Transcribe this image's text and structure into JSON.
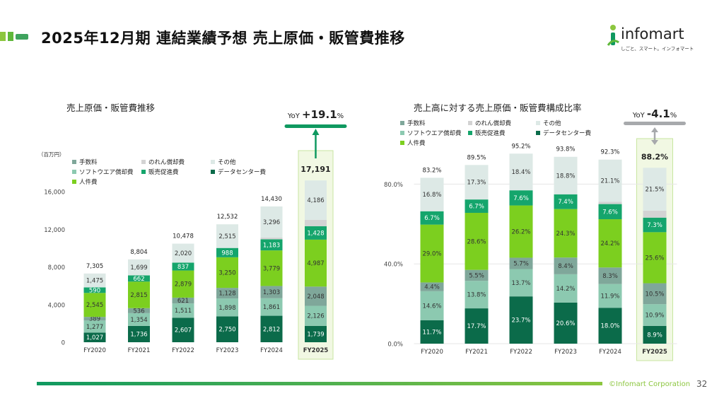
{
  "page_title": "2025年12月期 連結業績予想 売上原価・販管費推移",
  "logo": {
    "name": "infomart",
    "tagline": "しごと、スマート。インフォマート"
  },
  "footer": {
    "copyright": "©Infomart Corporation",
    "page_number": "32"
  },
  "colors": {
    "data_center": "#0b6b4a",
    "software_depr": "#8cc9b0",
    "fees": "#7fa79a",
    "sales_promo": "#15a56c",
    "personnel": "#7ccf1f",
    "goodwill": "#d3d3d3",
    "other": "#dde9e6",
    "highlight_bg": "#f1f8e3",
    "highlight_border": "#c8e6a0",
    "accent_green": "#0f9960",
    "accent_gray": "#a7a9ac"
  },
  "chart_data": [
    {
      "type": "bar",
      "stacked": true,
      "title": "売上原価・販管費推移",
      "unit_label": "（百万円）",
      "categories": [
        "FY2020",
        "FY2021",
        "FY2022",
        "FY2023",
        "FY2024",
        "FY2025"
      ],
      "highlight_category": "FY2025",
      "ylim": [
        0,
        16000
      ],
      "yticks": [
        "0",
        "4,000",
        "8,000",
        "12,000",
        "16,000"
      ],
      "yticks_values": [
        0,
        4000,
        8000,
        12000,
        16000
      ],
      "series": [
        {
          "name": "データセンター費",
          "key": "data_center",
          "values": [
            1027,
            1736,
            2607,
            2750,
            2812,
            1739
          ],
          "labels": [
            "1,027",
            "1,736",
            "2,607",
            "2,750",
            "2,812",
            "1,739"
          ]
        },
        {
          "name": "ソフトウエア償却費",
          "key": "software_depr",
          "values": [
            1277,
            1354,
            1511,
            1898,
            1861,
            2126
          ],
          "labels": [
            "1,277",
            "1,354",
            "1,511",
            "1,898",
            "1,861",
            "2,126"
          ]
        },
        {
          "name": "手数料",
          "key": "fees",
          "values": [
            389,
            536,
            621,
            1128,
            1303,
            2048
          ],
          "labels": [
            "389",
            "536",
            "621",
            "1,128",
            "1,303",
            "2,048"
          ]
        },
        {
          "name": "人件費",
          "key": "personnel",
          "values": [
            2545,
            2815,
            2879,
            3250,
            3779,
            4987
          ],
          "labels": [
            "2,545",
            "2,815",
            "2,879",
            "3,250",
            "3,779",
            "4,987"
          ]
        },
        {
          "name": "販売促進費",
          "key": "sales_promo",
          "values": [
            590,
            662,
            837,
            988,
            1183,
            1428
          ],
          "labels": [
            "590",
            "662",
            "837",
            "988",
            "1,183",
            "1,428"
          ]
        },
        {
          "name": "のれん償却費",
          "key": "goodwill",
          "values": [
            0,
            0,
            0,
            0,
            193,
            674
          ],
          "labels": [
            "",
            "",
            "",
            "",
            "193",
            "674"
          ]
        },
        {
          "name": "その他",
          "key": "other",
          "values": [
            1475,
            1699,
            2020,
            2515,
            3296,
            4186
          ],
          "labels": [
            "1,475",
            "1,699",
            "2,020",
            "2,515",
            "3,296",
            "4,186"
          ]
        }
      ],
      "totals": [
        "7,305",
        "8,804",
        "10,478",
        "12,532",
        "14,430",
        "17,191"
      ],
      "totals_values": [
        7305,
        8804,
        10478,
        12532,
        14430,
        17191
      ],
      "yoy": {
        "prefix": "YoY",
        "value": "+19.1",
        "unit": "%"
      }
    },
    {
      "type": "bar",
      "stacked": true,
      "title": "売上高に対する売上原価・販管費構成比率",
      "categories": [
        "FY2020",
        "FY2021",
        "FY2022",
        "FY2023",
        "FY2024",
        "FY2025"
      ],
      "highlight_category": "FY2025",
      "ylim": [
        0,
        100
      ],
      "yticks": [
        "0.0%",
        "40.0%",
        "80.0%"
      ],
      "yticks_values": [
        0,
        40,
        80
      ],
      "series": [
        {
          "name": "データセンター費",
          "key": "data_center",
          "values": [
            11.7,
            17.7,
            23.7,
            20.6,
            18.0,
            8.9
          ],
          "labels": [
            "11.7%",
            "17.7%",
            "23.7%",
            "20.6%",
            "18.0%",
            "8.9%"
          ]
        },
        {
          "name": "ソフトウエア償却費",
          "key": "software_depr",
          "values": [
            14.6,
            13.8,
            13.7,
            14.2,
            11.9,
            10.9
          ],
          "labels": [
            "14.6%",
            "13.8%",
            "13.7%",
            "14.2%",
            "11.9%",
            "10.9%"
          ]
        },
        {
          "name": "手数料",
          "key": "fees",
          "values": [
            4.4,
            5.5,
            5.7,
            8.4,
            8.3,
            10.5
          ],
          "labels": [
            "4.4%",
            "5.5%",
            "5.7%",
            "8.4%",
            "8.3%",
            "10.5%"
          ]
        },
        {
          "name": "人件費",
          "key": "personnel",
          "values": [
            29.0,
            28.6,
            26.2,
            24.3,
            24.2,
            25.6
          ],
          "labels": [
            "29.0%",
            "28.6%",
            "26.2%",
            "24.3%",
            "24.2%",
            "25.6%"
          ]
        },
        {
          "name": "販売促進費",
          "key": "sales_promo",
          "values": [
            6.7,
            6.7,
            7.6,
            7.4,
            7.6,
            7.3
          ],
          "labels": [
            "6.7%",
            "6.7%",
            "7.6%",
            "7.4%",
            "7.6%",
            "7.3%"
          ]
        },
        {
          "name": "のれん償却費",
          "key": "goodwill",
          "values": [
            0,
            0,
            0,
            0,
            1.2,
            3.5
          ],
          "labels": [
            "",
            "",
            "",
            "",
            "1.2%",
            "3.5%"
          ]
        },
        {
          "name": "その他",
          "key": "other",
          "values": [
            16.8,
            17.3,
            18.4,
            18.8,
            21.1,
            21.5
          ],
          "labels": [
            "16.8%",
            "17.3%",
            "18.4%",
            "18.8%",
            "21.1%",
            "21.5%"
          ]
        }
      ],
      "totals": [
        "83.2%",
        "89.5%",
        "95.2%",
        "93.8%",
        "92.3%",
        "88.2%"
      ],
      "totals_values": [
        83.2,
        89.5,
        95.2,
        93.8,
        92.3,
        88.2
      ],
      "yoy": {
        "prefix": "YoY",
        "value": "-4.1",
        "unit": "%"
      }
    }
  ],
  "legend_order": [
    "fees",
    "goodwill",
    "other",
    "software_depr",
    "sales_promo",
    "data_center",
    "personnel"
  ]
}
